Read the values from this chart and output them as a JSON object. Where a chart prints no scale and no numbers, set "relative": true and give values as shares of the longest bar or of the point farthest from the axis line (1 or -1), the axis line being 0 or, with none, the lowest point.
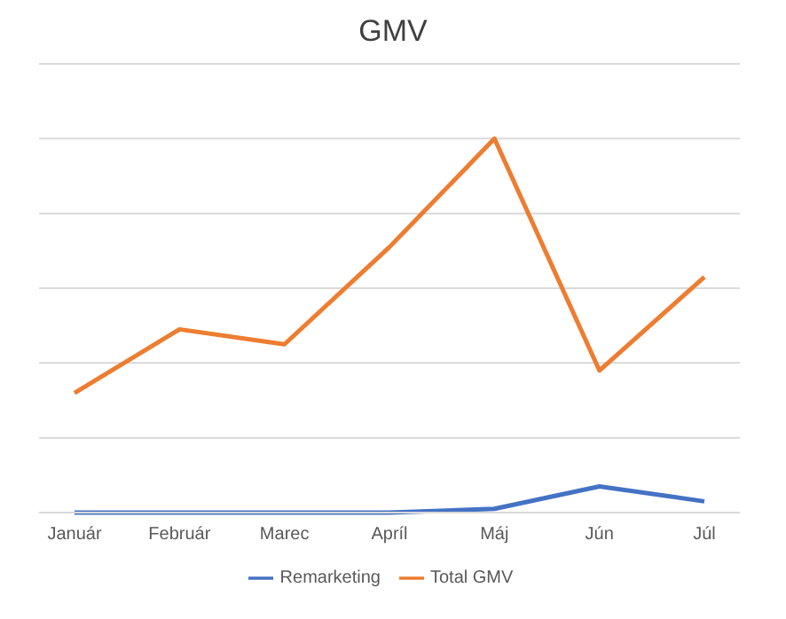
{
  "chart_data": {
    "type": "line",
    "title": "GMV",
    "relative": true,
    "categories": [
      "Január",
      "Február",
      "Marec",
      "Apríl",
      "Máj",
      "Jún",
      "Júl"
    ],
    "series": [
      {
        "name": "Remarketing",
        "color": "#4472c4",
        "values": [
          0,
          0,
          0,
          0,
          0.01,
          0.07,
          0.03
        ]
      },
      {
        "name": "Total GMV",
        "color": "#ed7d31",
        "values": [
          0.32,
          0.49,
          0.45,
          0.71,
          1,
          0.38,
          0.63
        ]
      }
    ],
    "grid": "y",
    "legend": "bottom",
    "marker": "none",
    "line_style": "solid"
  }
}
